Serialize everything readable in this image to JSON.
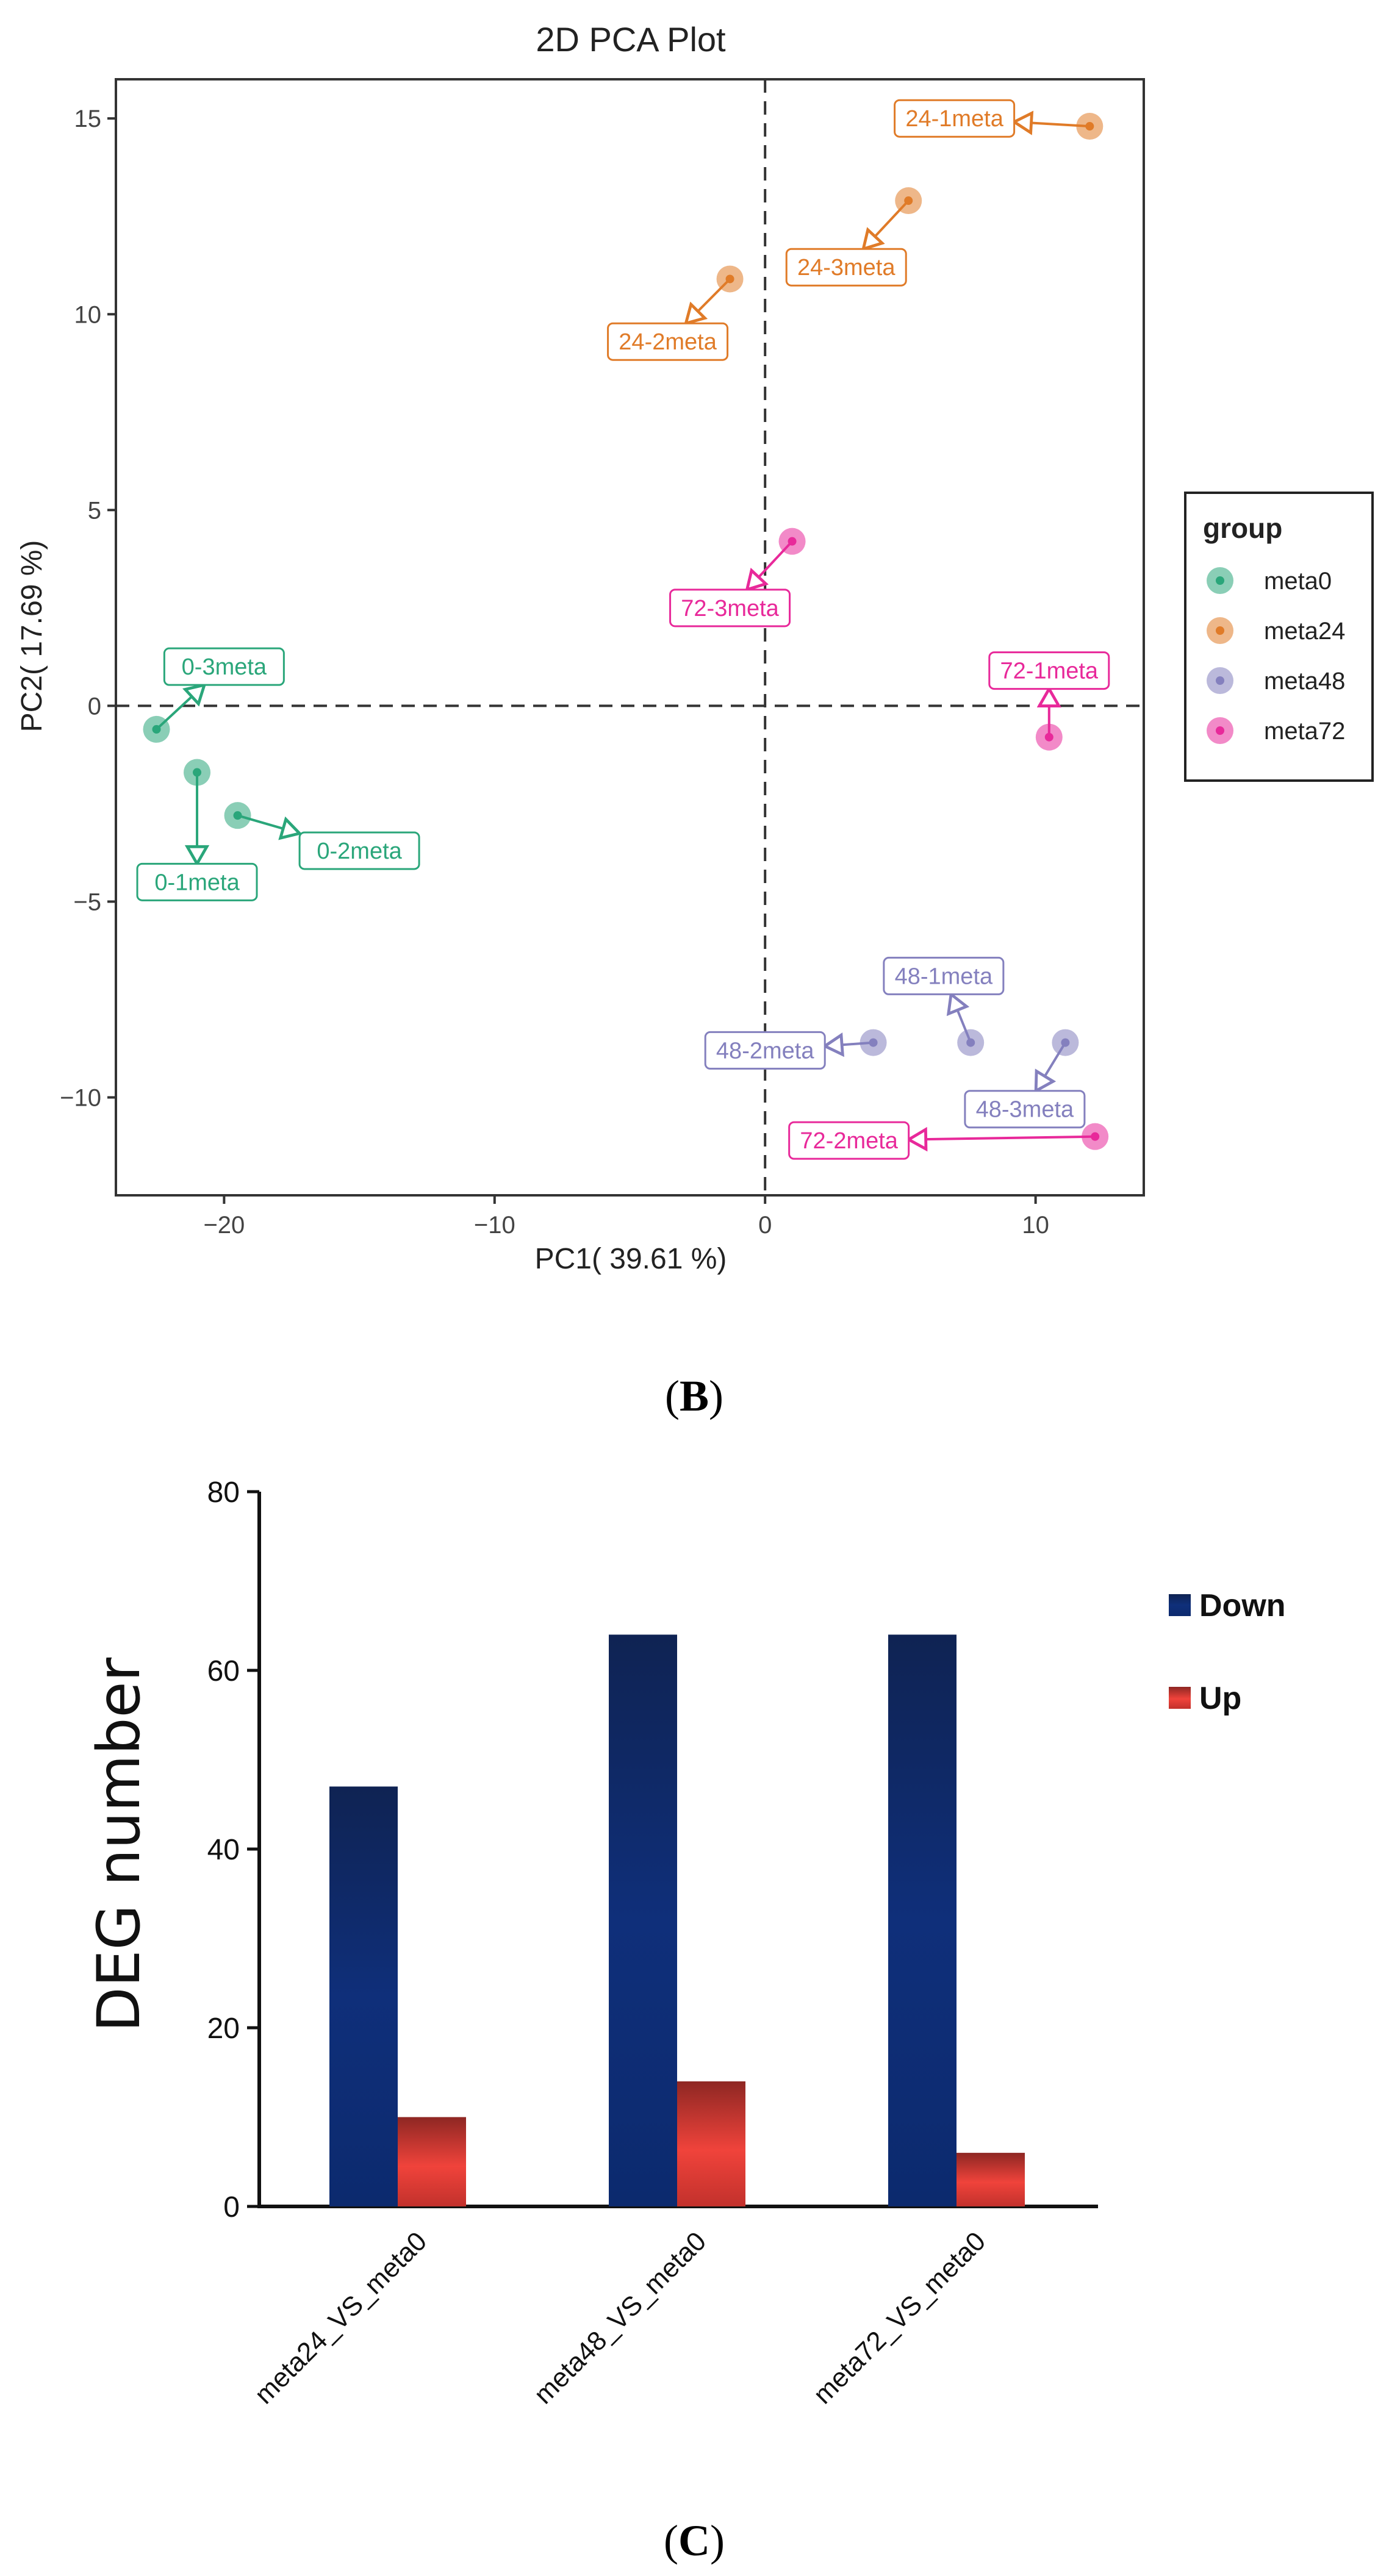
{
  "pca": {
    "chart_data": {
      "type": "scatter",
      "title": "2D PCA Plot",
      "xlabel": "PC1( 39.61 %)",
      "ylabel": "PC2( 17.69 %)",
      "xlim": [
        -24,
        14
      ],
      "ylim": [
        -12.5,
        16
      ],
      "xticks": [
        -20,
        -10,
        0,
        10
      ],
      "yticks": [
        -10,
        -5,
        0,
        5,
        10,
        15
      ],
      "xtick_labels": [
        "−20",
        "−10",
        "0",
        "10"
      ],
      "ytick_labels": [
        "−10",
        "−5",
        "0",
        "5",
        "10",
        "15"
      ],
      "reference_lines": {
        "x": 0,
        "y": 0,
        "style": "dashed"
      },
      "legend": {
        "title": "group",
        "position": "right",
        "entries": [
          {
            "name": "meta0",
            "color": "#2aa67a"
          },
          {
            "name": "meta24",
            "color": "#e07b28"
          },
          {
            "name": "meta48",
            "color": "#8480be"
          },
          {
            "name": "meta72",
            "color": "#e8299a"
          }
        ]
      },
      "points": [
        {
          "label": "0-1meta",
          "group": "meta0",
          "x": -21.0,
          "y": -1.7,
          "label_x": -21.0,
          "label_y": -4.5
        },
        {
          "label": "0-2meta",
          "group": "meta0",
          "x": -19.5,
          "y": -2.8,
          "label_x": -15.0,
          "label_y": -3.7
        },
        {
          "label": "0-3meta",
          "group": "meta0",
          "x": -22.5,
          "y": -0.6,
          "label_x": -20.0,
          "label_y": 1.0
        },
        {
          "label": "24-1meta",
          "group": "meta24",
          "x": 12.0,
          "y": 14.8,
          "label_x": 7.0,
          "label_y": 15.0
        },
        {
          "label": "24-2meta",
          "group": "meta24",
          "x": -1.3,
          "y": 10.9,
          "label_x": -3.6,
          "label_y": 9.3
        },
        {
          "label": "24-3meta",
          "group": "meta24",
          "x": 5.3,
          "y": 12.9,
          "label_x": 3.0,
          "label_y": 11.2
        },
        {
          "label": "48-1meta",
          "group": "meta48",
          "x": 7.6,
          "y": -8.6,
          "label_x": 6.6,
          "label_y": -6.9
        },
        {
          "label": "48-2meta",
          "group": "meta48",
          "x": 4.0,
          "y": -8.6,
          "label_x": 0.0,
          "label_y": -8.8
        },
        {
          "label": "48-3meta",
          "group": "meta48",
          "x": 11.1,
          "y": -8.6,
          "label_x": 9.6,
          "label_y": -10.3
        },
        {
          "label": "72-1meta",
          "group": "meta72",
          "x": 10.5,
          "y": -0.8,
          "label_x": 10.5,
          "label_y": 0.9
        },
        {
          "label": "72-2meta",
          "group": "meta72",
          "x": 12.2,
          "y": -11.0,
          "label_x": 3.1,
          "label_y": -11.1
        },
        {
          "label": "72-3meta",
          "group": "meta72",
          "x": 1.0,
          "y": 4.2,
          "label_x": -1.3,
          "label_y": 2.5
        }
      ]
    },
    "panel_label": {
      "open": "(",
      "letter": "B",
      "close": ")"
    }
  },
  "deg": {
    "chart_data": {
      "type": "bar",
      "title": "",
      "xlabel": "",
      "ylabel": "DEG number",
      "ylim": [
        0,
        80
      ],
      "yticks": [
        0,
        20,
        40,
        60,
        80
      ],
      "categories": [
        "meta24_VS_meta0",
        "meta48_VS_meta0",
        "meta72_VS_meta0"
      ],
      "series": [
        {
          "name": "Down",
          "color": "#0f2f7a",
          "values": [
            47,
            64,
            64
          ]
        },
        {
          "name": "Up",
          "color": "#e0322c",
          "values": [
            10,
            14,
            6
          ]
        }
      ],
      "legend": {
        "position": "top-right"
      }
    },
    "panel_label": {
      "open": "(",
      "letter": "C",
      "close": ")"
    }
  }
}
